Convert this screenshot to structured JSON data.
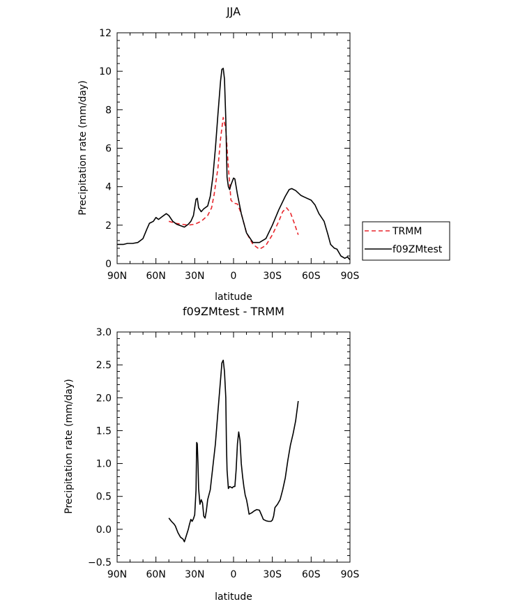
{
  "chart_data": [
    {
      "type": "line",
      "title": "JJA",
      "xlabel": "latitude",
      "ylabel": "Precipitation rate (mm/day)",
      "xlim": [
        90,
        -90
      ],
      "ylim": [
        0,
        12
      ],
      "x_ticks": [
        90,
        60,
        30,
        0,
        -30,
        -60,
        -90
      ],
      "x_tick_labels": [
        "90N",
        "60N",
        "30N",
        "0",
        "30S",
        "60S",
        "90S"
      ],
      "y_ticks": [
        0,
        2,
        4,
        6,
        8,
        10,
        12
      ],
      "y_tick_labels": [
        "0",
        "2",
        "4",
        "6",
        "8",
        "10",
        "12"
      ],
      "legend_position": "right",
      "series": [
        {
          "name": "TRMM",
          "color": "#e8252b",
          "dash": true,
          "points": [
            [
              50,
              2.2
            ],
            [
              45,
              2.1
            ],
            [
              40,
              2.05
            ],
            [
              35,
              2.0
            ],
            [
              30,
              2.05
            ],
            [
              25,
              2.2
            ],
            [
              20,
              2.5
            ],
            [
              17,
              2.9
            ],
            [
              15,
              3.6
            ],
            [
              12,
              5.0
            ],
            [
              10,
              6.5
            ],
            [
              8,
              7.6
            ],
            [
              6,
              7.0
            ],
            [
              4,
              5.0
            ],
            [
              2,
              3.3
            ],
            [
              0,
              3.15
            ],
            [
              -3,
              3.1
            ],
            [
              -6,
              2.6
            ],
            [
              -10,
              1.6
            ],
            [
              -15,
              1.0
            ],
            [
              -20,
              0.75
            ],
            [
              -25,
              0.95
            ],
            [
              -30,
              1.5
            ],
            [
              -35,
              2.2
            ],
            [
              -38,
              2.7
            ],
            [
              -41,
              2.9
            ],
            [
              -44,
              2.65
            ],
            [
              -47,
              2.1
            ],
            [
              -50,
              1.5
            ]
          ]
        },
        {
          "name": "f09ZMtest",
          "color": "#000000",
          "dash": false,
          "points": [
            [
              90,
              1.0
            ],
            [
              85,
              1.0
            ],
            [
              82,
              1.05
            ],
            [
              78,
              1.05
            ],
            [
              74,
              1.1
            ],
            [
              70,
              1.3
            ],
            [
              67,
              1.8
            ],
            [
              65,
              2.1
            ],
            [
              62,
              2.2
            ],
            [
              60,
              2.4
            ],
            [
              58,
              2.3
            ],
            [
              55,
              2.45
            ],
            [
              52,
              2.6
            ],
            [
              50,
              2.5
            ],
            [
              47,
              2.2
            ],
            [
              44,
              2.05
            ],
            [
              40,
              1.95
            ],
            [
              38,
              1.9
            ],
            [
              35,
              2.05
            ],
            [
              33,
              2.2
            ],
            [
              31,
              2.5
            ],
            [
              29,
              3.35
            ],
            [
              28,
              3.4
            ],
            [
              27,
              2.9
            ],
            [
              25,
              2.7
            ],
            [
              23,
              2.85
            ],
            [
              20,
              3.0
            ],
            [
              18,
              3.5
            ],
            [
              16,
              4.5
            ],
            [
              14,
              6.0
            ],
            [
              12,
              7.8
            ],
            [
              10,
              9.5
            ],
            [
              9,
              10.1
            ],
            [
              8,
              10.15
            ],
            [
              7,
              9.6
            ],
            [
              6,
              7.5
            ],
            [
              5,
              4.5
            ],
            [
              4,
              4.0
            ],
            [
              3,
              3.85
            ],
            [
              2,
              4.1
            ],
            [
              0,
              4.45
            ],
            [
              -1,
              4.4
            ],
            [
              -3,
              3.6
            ],
            [
              -6,
              2.6
            ],
            [
              -10,
              1.6
            ],
            [
              -15,
              1.1
            ],
            [
              -20,
              1.1
            ],
            [
              -25,
              1.3
            ],
            [
              -30,
              2.0
            ],
            [
              -35,
              2.8
            ],
            [
              -40,
              3.5
            ],
            [
              -43,
              3.85
            ],
            [
              -45,
              3.9
            ],
            [
              -48,
              3.8
            ],
            [
              -52,
              3.55
            ],
            [
              -55,
              3.45
            ],
            [
              -60,
              3.3
            ],
            [
              -63,
              3.05
            ],
            [
              -66,
              2.6
            ],
            [
              -70,
              2.2
            ],
            [
              -73,
              1.5
            ],
            [
              -75,
              1.0
            ],
            [
              -78,
              0.8
            ],
            [
              -80,
              0.75
            ],
            [
              -83,
              0.4
            ],
            [
              -86,
              0.28
            ],
            [
              -88,
              0.35
            ],
            [
              -90,
              0.2
            ]
          ]
        }
      ]
    },
    {
      "type": "line",
      "title": "f09ZMtest - TRMM",
      "xlabel": "latitude",
      "ylabel": "Precipitation rate (mm/day)",
      "xlim": [
        90,
        -90
      ],
      "ylim": [
        -0.5,
        3.0
      ],
      "x_ticks": [
        90,
        60,
        30,
        0,
        -30,
        -60,
        -90
      ],
      "x_tick_labels": [
        "90N",
        "60N",
        "30N",
        "0",
        "30S",
        "60S",
        "90S"
      ],
      "y_ticks": [
        -0.5,
        0.0,
        0.5,
        1.0,
        1.5,
        2.0,
        2.5,
        3.0
      ],
      "y_tick_labels": [
        "−0.5",
        "0.0",
        "0.5",
        "1.0",
        "1.5",
        "2.0",
        "2.5",
        "3.0"
      ],
      "series": [
        {
          "color": "#000000",
          "dash": false,
          "points": [
            [
              50,
              0.17
            ],
            [
              48,
              0.12
            ],
            [
              46,
              0.08
            ],
            [
              45,
              0.05
            ],
            [
              43,
              -0.05
            ],
            [
              41,
              -0.12
            ],
            [
              39,
              -0.15
            ],
            [
              38,
              -0.19
            ],
            [
              37,
              -0.13
            ],
            [
              35,
              0.0
            ],
            [
              34,
              0.08
            ],
            [
              33,
              0.15
            ],
            [
              32,
              0.12
            ],
            [
              31,
              0.16
            ],
            [
              30,
              0.22
            ],
            [
              29,
              0.6
            ],
            [
              28.5,
              1.32
            ],
            [
              28,
              1.3
            ],
            [
              27.5,
              1.0
            ],
            [
              27,
              0.62
            ],
            [
              26,
              0.38
            ],
            [
              25,
              0.45
            ],
            [
              24,
              0.4
            ],
            [
              23,
              0.2
            ],
            [
              22,
              0.17
            ],
            [
              21,
              0.28
            ],
            [
              20,
              0.45
            ],
            [
              18,
              0.6
            ],
            [
              16,
              0.95
            ],
            [
              14,
              1.3
            ],
            [
              12,
              1.8
            ],
            [
              10,
              2.28
            ],
            [
              9,
              2.53
            ],
            [
              8,
              2.57
            ],
            [
              7,
              2.4
            ],
            [
              6,
              2.0
            ],
            [
              5.5,
              1.3
            ],
            [
              5,
              0.9
            ],
            [
              4,
              0.62
            ],
            [
              3,
              0.65
            ],
            [
              1,
              0.63
            ],
            [
              0,
              0.65
            ],
            [
              -1,
              0.65
            ],
            [
              -2,
              0.9
            ],
            [
              -3,
              1.3
            ],
            [
              -4,
              1.48
            ],
            [
              -5,
              1.35
            ],
            [
              -6,
              1.0
            ],
            [
              -7,
              0.8
            ],
            [
              -8,
              0.65
            ],
            [
              -9,
              0.52
            ],
            [
              -10,
              0.45
            ],
            [
              -11,
              0.35
            ],
            [
              -12,
              0.23
            ],
            [
              -14,
              0.25
            ],
            [
              -16,
              0.28
            ],
            [
              -18,
              0.3
            ],
            [
              -20,
              0.29
            ],
            [
              -22,
              0.2
            ],
            [
              -23,
              0.15
            ],
            [
              -25,
              0.13
            ],
            [
              -27,
              0.12
            ],
            [
              -29,
              0.12
            ],
            [
              -30,
              0.14
            ],
            [
              -31,
              0.2
            ],
            [
              -32,
              0.33
            ],
            [
              -34,
              0.38
            ],
            [
              -36,
              0.45
            ],
            [
              -38,
              0.6
            ],
            [
              -40,
              0.78
            ],
            [
              -42,
              1.05
            ],
            [
              -44,
              1.28
            ],
            [
              -46,
              1.45
            ],
            [
              -48,
              1.65
            ],
            [
              -50,
              1.95
            ]
          ]
        }
      ]
    }
  ]
}
